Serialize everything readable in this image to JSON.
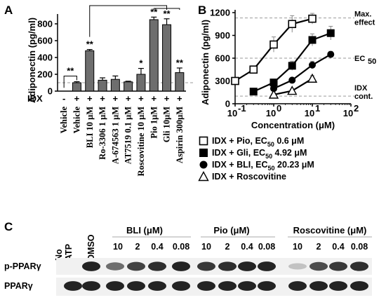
{
  "panels": {
    "a": "A",
    "b": "B",
    "c": "C"
  },
  "chart_data": [
    {
      "type": "bar",
      "ylabel": "Adiponectin (pg/ml)",
      "ylim": [
        0,
        900
      ],
      "yticks": [
        0,
        200,
        400,
        600,
        800
      ],
      "idx_label": "IDX",
      "idx_flags": [
        "-",
        "+",
        "+",
        "+",
        "+",
        "+",
        "+",
        "+",
        "+",
        "+"
      ],
      "categories": [
        "Vehicle",
        "Vehicle",
        "BLI 10 μM",
        "Ro-3306 1 μM",
        "A-674563 1 μM",
        "AT7519 0.1 μM",
        "Roscovitine 10 μM",
        "Pio 1μM",
        "Gli 10μM",
        "Aspirin 300μM"
      ],
      "values": [
        0,
        100,
        480,
        130,
        140,
        110,
        200,
        850,
        790,
        220
      ],
      "errors": [
        0,
        12,
        15,
        28,
        40,
        8,
        70,
        30,
        70,
        55
      ],
      "significance": [
        "",
        "",
        "**",
        "",
        "",
        "",
        "*",
        "**",
        "**",
        "**"
      ],
      "vehicle_comparison": "**",
      "reference_line": 100,
      "bar_color": "#6e6e6e"
    },
    {
      "type": "scatter",
      "xlabel": "Concentration (μM)",
      "ylabel": "Adiponectin (pg/ml)",
      "xscale": "log",
      "xlim": [
        0.1,
        100
      ],
      "xticks": [
        0.1,
        1,
        10,
        100
      ],
      "xtick_labels": [
        [
          "10",
          "-1"
        ],
        [
          "10",
          "0"
        ],
        [
          "10",
          "1"
        ],
        [
          "10",
          "2"
        ]
      ],
      "ylim": [
        0,
        1200
      ],
      "yticks": [
        0,
        300,
        600,
        900,
        1200
      ],
      "ref_lines": [
        {
          "value": 1130,
          "label": [
            "Max.",
            "effect"
          ]
        },
        {
          "value": 600,
          "label": [
            "EC",
            "50"
          ]
        },
        {
          "value": 100,
          "label": [
            "IDX",
            "cont."
          ]
        }
      ],
      "series": [
        {
          "name": "IDX + Pio, EC50 0.6 μM",
          "marker": "square-open",
          "x": [
            0.1,
            0.3,
            1,
            3,
            10
          ],
          "y": [
            300,
            450,
            780,
            1050,
            1120
          ],
          "err": [
            30,
            40,
            100,
            110,
            70
          ]
        },
        {
          "name": "IDX + Gli, EC50 4.92 μM",
          "marker": "square-filled",
          "x": [
            0.3,
            1,
            3,
            10,
            30
          ],
          "y": [
            160,
            280,
            500,
            840,
            930
          ],
          "err": [
            20,
            30,
            60,
            80,
            90
          ]
        },
        {
          "name": "IDX + BLI, EC50 20.23 μM",
          "marker": "circle-filled",
          "x": [
            1,
            3,
            10,
            30
          ],
          "y": [
            200,
            310,
            510,
            650
          ],
          "err": [
            20,
            30,
            50,
            40
          ]
        },
        {
          "name": "IDX + Roscovitine",
          "marker": "triangle-open",
          "x": [
            1,
            3,
            10
          ],
          "y": [
            120,
            170,
            330
          ],
          "err": [
            15,
            20,
            40
          ]
        }
      ],
      "legend": [
        {
          "prefix": "IDX + Pio, EC",
          "sub": "50",
          "suffix": " 0.6 μM",
          "marker": "square-open"
        },
        {
          "prefix": "IDX + Gli, EC",
          "sub": "50",
          "suffix": " 4.92 μM",
          "marker": "square-filled"
        },
        {
          "prefix": "IDX + BLI, EC",
          "sub": "50",
          "suffix": " 20.23 μM",
          "marker": "circle-filled"
        },
        {
          "prefix": "IDX + Roscovitine",
          "sub": "",
          "suffix": "",
          "marker": "triangle-open"
        }
      ],
      "legend_position": "below"
    }
  ],
  "blot": {
    "top_labels": [
      {
        "text": "No",
        "rot": true
      },
      {
        "text": "ATP",
        "rot": true
      },
      {
        "text": "DMSO",
        "rot": true
      }
    ],
    "groups": [
      {
        "label": "BLI (μM)",
        "doses": [
          "10",
          "2",
          "0.4",
          "0.08"
        ]
      },
      {
        "label": "Pio (μM)",
        "doses": [
          "10",
          "2",
          "0.4",
          "0.08"
        ]
      },
      {
        "label": "Roscovitine (μM)",
        "doses": [
          "10",
          "2",
          "0.4",
          "0.08"
        ]
      }
    ],
    "rows": [
      {
        "label": "p-PPARγ",
        "intensities": [
          0.0,
          0.95,
          0.6,
          0.8,
          0.9,
          0.95,
          0.85,
          0.9,
          0.95,
          0.95,
          0.2,
          0.75,
          0.85,
          0.9
        ]
      },
      {
        "label": "PPARγ",
        "intensities": [
          0.95,
          0.95,
          0.95,
          0.95,
          0.95,
          0.95,
          0.95,
          0.95,
          0.95,
          0.95,
          0.95,
          0.95,
          0.95,
          0.95
        ]
      }
    ]
  }
}
